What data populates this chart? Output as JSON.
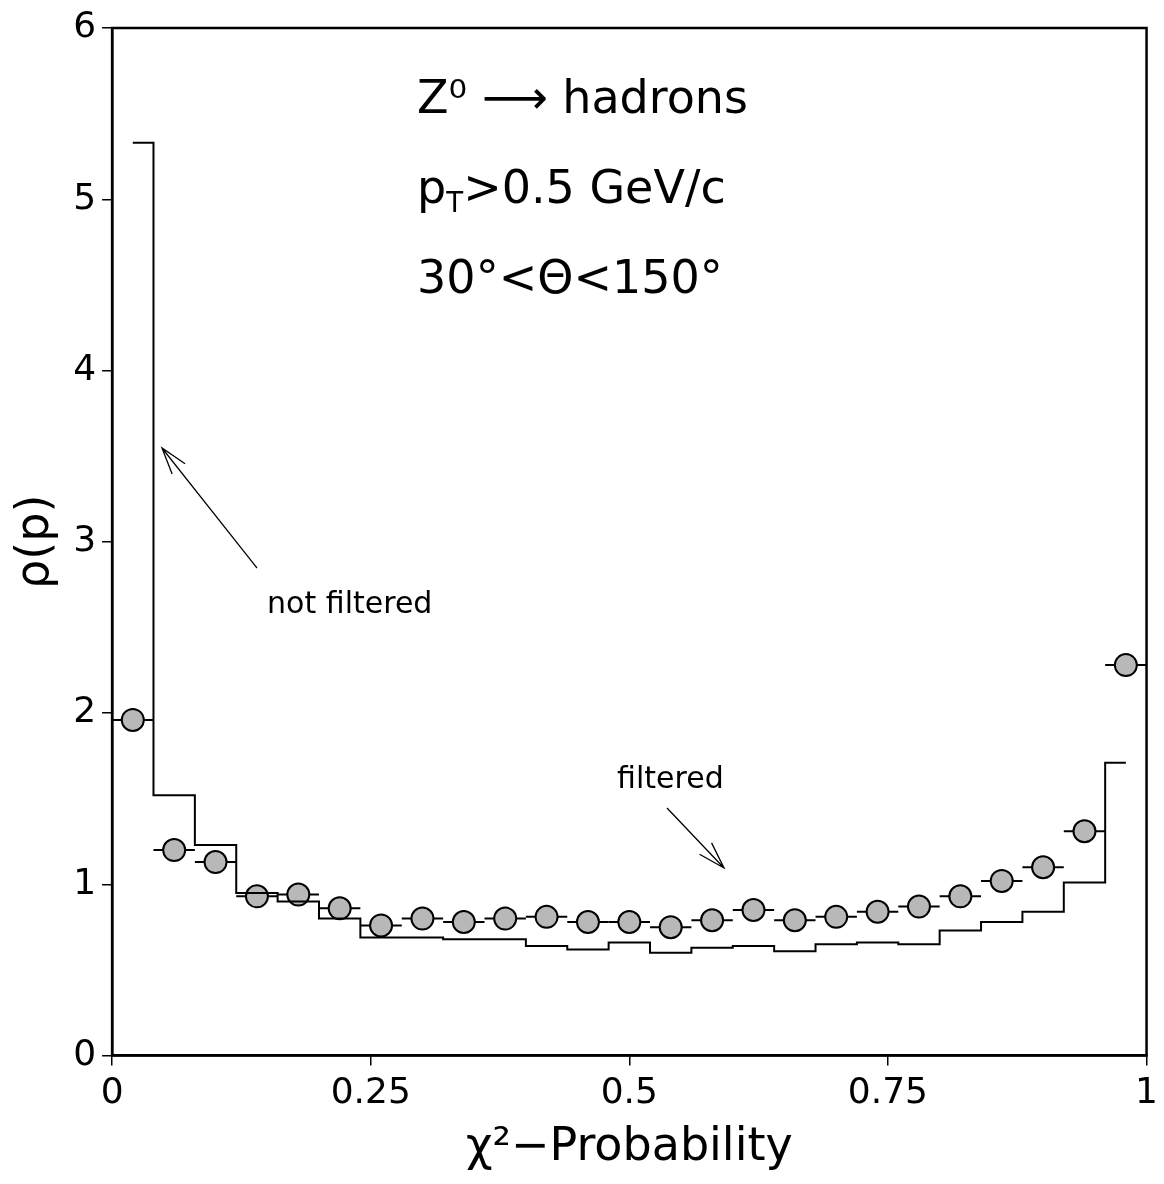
{
  "chart_data": {
    "type": "step",
    "xlabel": "χ²−Probability",
    "ylabel": "ρ(p)",
    "series": [
      {
        "color": "#000000",
        "x": [
          0.02,
          0.06,
          0.1,
          0.14,
          0.18,
          0.22,
          0.26,
          0.3,
          0.34,
          0.38,
          0.42,
          0.46,
          0.5,
          0.54,
          0.58,
          0.62,
          0.66,
          0.7,
          0.74,
          0.78,
          0.82,
          0.86,
          0.9,
          0.94,
          0.98
        ],
        "values": [
          5.33,
          1.52,
          1.23,
          0.95,
          0.9,
          0.8,
          0.69,
          0.69,
          0.68,
          0.68,
          0.64,
          0.62,
          0.66,
          0.6,
          0.63,
          0.64,
          0.61,
          0.65,
          0.66,
          0.65,
          0.73,
          0.78,
          0.84,
          1.01,
          1.71
        ]
      },
      {
        "type": "scatter",
        "marker": "circle",
        "color": "#000000",
        "x": [
          0.02,
          0.06,
          0.1,
          0.14,
          0.18,
          0.22,
          0.26,
          0.3,
          0.34,
          0.38,
          0.42,
          0.46,
          0.5,
          0.54,
          0.58,
          0.62,
          0.66,
          0.7,
          0.74,
          0.78,
          0.82,
          0.86,
          0.9,
          0.94,
          0.98
        ],
        "values": [
          1.96,
          1.2,
          1.13,
          0.93,
          0.94,
          0.86,
          0.76,
          0.8,
          0.78,
          0.8,
          0.81,
          0.78,
          0.78,
          0.75,
          0.79,
          0.85,
          0.79,
          0.81,
          0.84,
          0.87,
          0.93,
          1.02,
          1.1,
          1.31,
          2.28
        ],
        "xerrors": [
          0.02,
          0.02,
          0.02,
          0.02,
          0.02,
          0.02,
          0.02,
          0.02,
          0.02,
          0.02,
          0.02,
          0.02,
          0.02,
          0.02,
          0.02,
          0.02,
          0.02,
          0.02,
          0.02,
          0.02,
          0.02,
          0.02,
          0.02,
          0.02,
          0.02
        ]
      }
    ],
    "xlim": [
      0,
      1
    ],
    "xticks": [
      0,
      0.25,
      0.5,
      0.75,
      1
    ],
    "ylim": [
      0,
      6
    ],
    "yticks": [
      0,
      1,
      2,
      3,
      4,
      5,
      6
    ],
    "annotations": [
      "Z⁰ ⟶ hadrons",
      "p$_{T}$>0.5 GeV/c",
      "30°<Θ<150°",
      "not filtered",
      "filtered"
    ]
  }
}
